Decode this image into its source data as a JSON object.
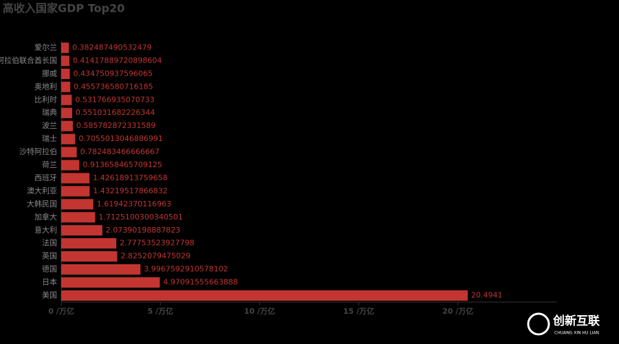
{
  "chart_data": {
    "type": "hbar",
    "title": "高收入国家GDP Top20",
    "categories": [
      "美国",
      "日本",
      "德国",
      "英国",
      "法国",
      "意大利",
      "加拿大",
      "大韩民国",
      "澳大利亚",
      "西班牙",
      "荷兰",
      "沙特阿拉伯",
      "瑞士",
      "波兰",
      "瑞典",
      "比利时",
      "奥地利",
      "挪威",
      "阿拉伯联合酋长国",
      "爱尔兰"
    ],
    "values": [
      20.4941,
      4.97091555663888,
      3.9967592910578102,
      2.8252079475029,
      2.77753523927798,
      2.07390198887823,
      1.7125100300340501,
      1.61942370116963,
      1.43219517866832,
      1.42618913759658,
      0.913658465709125,
      0.782483466666667,
      0.7055013046886991,
      0.585782872331589,
      0.551031682226344,
      0.531766935070733,
      0.455736580716185,
      0.434750937596065,
      0.41417889720898604,
      0.382487490532479
    ],
    "value_labels": [
      "20.4941",
      "4.97091555663888",
      "3.9967592910578102",
      "2.8252079475029",
      "2.77753523927798",
      "2.07390198887823",
      "1.7125100300340501",
      "1.61942370116963",
      "1.43219517866832",
      "1.42618913759658",
      "0.913658465709125",
      "0.782483466666667",
      "0.7055013046886991",
      "0.585782872331589",
      "0.551031682226344",
      "0.531766935070733",
      "0.455736580716185",
      "0.434750937596065",
      "0.41417889720898604",
      "0.382487490532479"
    ],
    "color": "#c23531",
    "xlim": [
      0,
      25
    ],
    "xticks": [
      {
        "value": 0,
        "label": "0 /万亿"
      },
      {
        "value": 5,
        "label": "5 /万亿"
      },
      {
        "value": 10,
        "label": "10 /万亿"
      },
      {
        "value": 15,
        "label": "15 /万亿"
      },
      {
        "value": 20,
        "label": "20 /万亿"
      }
    ],
    "watermark": {
      "title": "创新互联",
      "subtitle": "CHUANG XIN HU LIAN"
    }
  }
}
